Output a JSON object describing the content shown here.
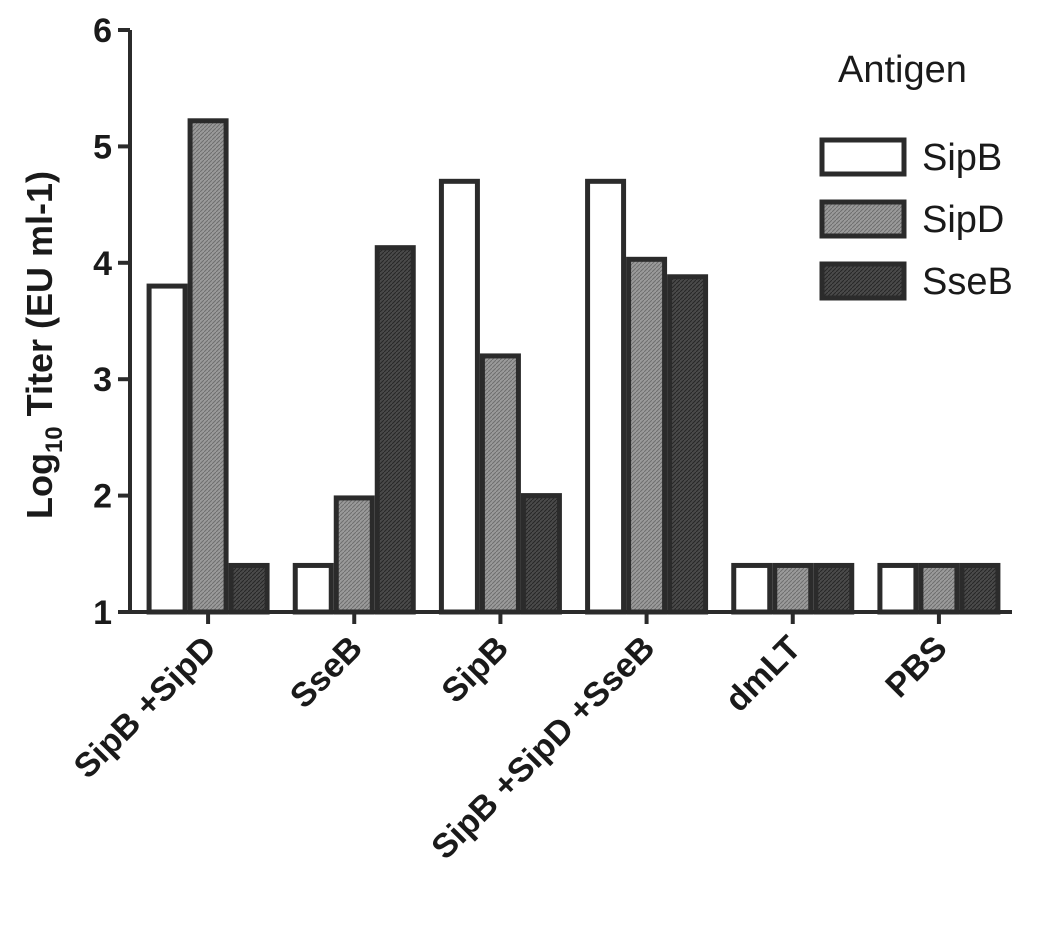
{
  "chart_data": {
    "type": "bar",
    "title": "",
    "xlabel": "",
    "ylabel_main": "Log",
    "ylabel_sub": "10",
    "ylabel_rest": " Titer (EU ml-1)",
    "ylim": [
      1,
      6
    ],
    "yticks": [
      "1",
      "2",
      "3",
      "4",
      "5",
      "6"
    ],
    "categories": [
      "SipB +SipD",
      "SseB",
      "SipB",
      "SipB +SipD +SseB",
      "dmLT",
      "PBS"
    ],
    "legend_title": "Antigen",
    "legend_position": "top-right",
    "grid": false,
    "series": [
      {
        "name": "SipB",
        "values": [
          3.8,
          1.4,
          4.7,
          4.7,
          1.4,
          1.4
        ],
        "fill": "#ffffff",
        "stroke": "#2b2b2b"
      },
      {
        "name": "SipD",
        "values": [
          5.22,
          1.98,
          3.2,
          4.03,
          1.4,
          1.4
        ],
        "fill": "#8c8c8c",
        "stroke": "#2b2b2b"
      },
      {
        "name": "SseB",
        "values": [
          1.4,
          4.13,
          2.0,
          3.88,
          1.4,
          1.4
        ],
        "fill": "#3d3d3d",
        "stroke": "#2b2b2b"
      }
    ]
  }
}
